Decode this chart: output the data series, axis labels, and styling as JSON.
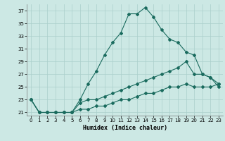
{
  "xlabel": "Humidex (Indice chaleur)",
  "bg_color": "#cce8e4",
  "grid_color": "#aacfcb",
  "line_color": "#1a6b5e",
  "xlim": [
    -0.5,
    23.5
  ],
  "ylim": [
    20.5,
    38
  ],
  "yticks": [
    21,
    23,
    25,
    27,
    29,
    31,
    33,
    35,
    37
  ],
  "xticks": [
    0,
    1,
    2,
    3,
    4,
    5,
    6,
    7,
    8,
    9,
    10,
    11,
    12,
    13,
    14,
    15,
    16,
    17,
    18,
    19,
    20,
    21,
    22,
    23
  ],
  "series1_y": [
    23,
    21,
    21,
    21,
    21,
    21,
    23,
    25.5,
    27.5,
    30,
    32,
    33.5,
    36.5,
    36.5,
    37.5,
    36,
    34,
    32.5,
    32,
    30.5,
    30,
    27,
    26.5,
    25.5
  ],
  "series2_y": [
    23,
    21,
    21,
    21,
    21,
    21,
    22.5,
    23,
    23,
    23.5,
    24,
    24.5,
    25,
    25.5,
    26,
    26.5,
    27,
    27.5,
    28,
    29,
    27,
    27,
    26.5,
    25
  ],
  "series3_y": [
    23,
    21,
    21,
    21,
    21,
    21,
    21.5,
    21.5,
    22,
    22,
    22.5,
    23,
    23,
    23.5,
    24,
    24,
    24.5,
    25,
    25,
    25.5,
    25,
    25,
    25,
    25.5
  ],
  "xlabel_fontsize": 6,
  "tick_fontsize": 5,
  "linewidth": 0.8,
  "markersize": 2
}
